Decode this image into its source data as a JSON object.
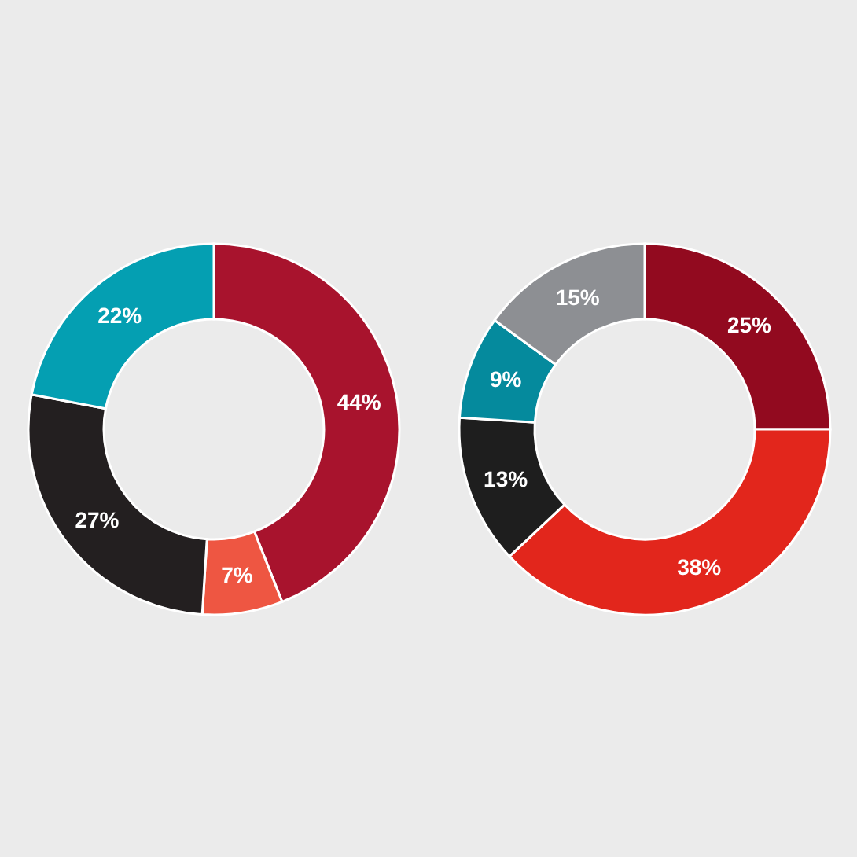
{
  "chart_data": [
    {
      "type": "donut",
      "categories": [
        null,
        null,
        null,
        null
      ],
      "values": [
        44,
        7,
        27,
        22
      ],
      "colors": [
        "#a8132d",
        "#ee5642",
        "#231f20",
        "#049fb2"
      ],
      "value_labels": [
        "44%",
        "7%",
        "27%",
        "22%"
      ]
    },
    {
      "type": "donut",
      "categories": [
        null,
        null,
        null,
        null,
        null
      ],
      "values": [
        25,
        38,
        13,
        9,
        15
      ],
      "colors": [
        "#920a1f",
        "#e2261c",
        "#1e1e1e",
        "#058a9d",
        "#8d8f93"
      ],
      "value_labels": [
        "25%",
        "38%",
        "13%",
        "9%",
        "15%"
      ]
    }
  ]
}
